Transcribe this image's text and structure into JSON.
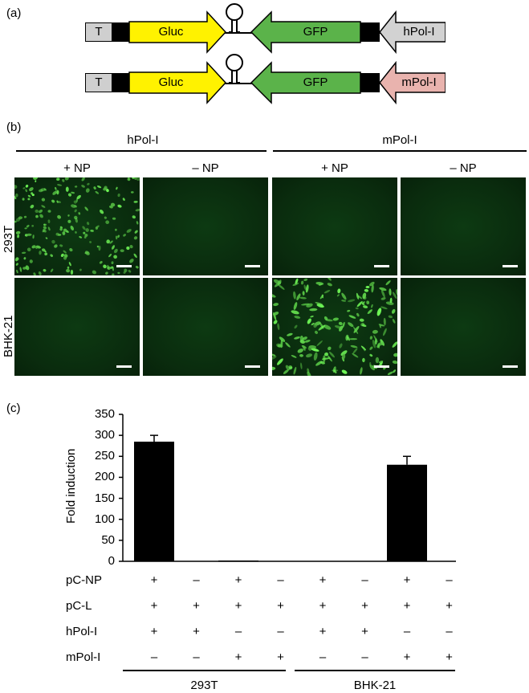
{
  "panel_a": {
    "label": "(a)",
    "constructs": [
      {
        "terminator": "T",
        "reporter": "Gluc",
        "gfp": "GFP",
        "promoter": "hPol-I",
        "promoter_color": "#d2d2d2"
      },
      {
        "terminator": "T",
        "reporter": "Gluc",
        "gfp": "GFP",
        "promoter": "mPol-I",
        "promoter_color": "#e9b3ae"
      }
    ],
    "colors": {
      "gluc": "#fff200",
      "gfp": "#5bb34a"
    }
  },
  "panel_b": {
    "label": "(b)",
    "groups": [
      "hPol-I",
      "mPol-I"
    ],
    "columns": [
      "+ NP",
      "– NP",
      "+ NP",
      "– NP"
    ],
    "rows": [
      "293T",
      "BHK-21"
    ],
    "fluorescence": [
      [
        0.85,
        0.0,
        0.0,
        0.0
      ],
      [
        0.0,
        0.0,
        0.8,
        0.0
      ]
    ]
  },
  "panel_c": {
    "label": "(c)"
  },
  "chart_data": {
    "type": "bar",
    "ylabel": "Fold induction",
    "ylim": [
      0,
      350
    ],
    "yticks": [
      "0",
      "50",
      "100",
      "150",
      "200",
      "250",
      "300",
      "350"
    ],
    "values": [
      285,
      0,
      1,
      0,
      0,
      0,
      230,
      0
    ],
    "errors": [
      15,
      0,
      0,
      0,
      0,
      0,
      20,
      0
    ],
    "conditions": [
      {
        "name": "pC-NP",
        "signs": [
          "+",
          "–",
          "+",
          "–",
          "+",
          "–",
          "+",
          "–"
        ]
      },
      {
        "name": "pC-L",
        "signs": [
          "+",
          "+",
          "+",
          "+",
          "+",
          "+",
          "+",
          "+"
        ]
      },
      {
        "name": "hPol-I",
        "signs": [
          "+",
          "+",
          "–",
          "–",
          "+",
          "+",
          "–",
          "–"
        ]
      },
      {
        "name": "mPol-I",
        "signs": [
          "–",
          "–",
          "+",
          "+",
          "–",
          "–",
          "+",
          "+"
        ]
      }
    ],
    "groups": [
      "293T",
      "BHK-21"
    ],
    "bar_color": "#000000"
  }
}
